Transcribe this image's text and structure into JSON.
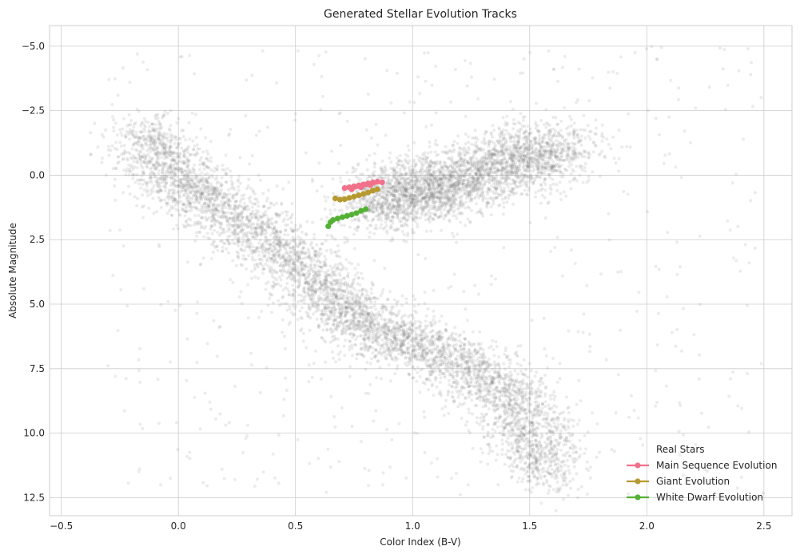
{
  "chart_data": {
    "type": "scatter",
    "title": "Generated Stellar Evolution Tracks",
    "xlabel": "Color Index (B-V)",
    "ylabel": "Absolute Magnitude",
    "xlim": [
      -0.55,
      2.62
    ],
    "ylim": [
      13.2,
      -5.8
    ],
    "y_inverted": true,
    "grid": true,
    "legend_position": "bottom-right",
    "x_ticks": [
      -0.5,
      0.0,
      0.5,
      1.0,
      1.5,
      2.0,
      2.5
    ],
    "x_tick_labels": [
      "−0.5",
      "0.0",
      "0.5",
      "1.0",
      "1.5",
      "2.0",
      "2.5"
    ],
    "y_ticks": [
      -5.0,
      -2.5,
      0.0,
      2.5,
      5.0,
      7.5,
      10.0,
      12.5
    ],
    "y_tick_labels": [
      "−5.0",
      "−2.5",
      "0.0",
      "2.5",
      "5.0",
      "7.5",
      "10.0",
      "12.5"
    ],
    "background_series": {
      "name": "Real Stars",
      "color": "#808080",
      "alpha": 0.15,
      "regions": [
        {
          "label": "main sequence",
          "path": [
            [
              -0.15,
              -1.8
            ],
            [
              -0.05,
              -0.2
            ],
            [
              0.1,
              0.8
            ],
            [
              0.3,
              2.0
            ],
            [
              0.5,
              3.4
            ],
            [
              0.65,
              4.8
            ],
            [
              0.8,
              5.8
            ],
            [
              1.0,
              6.5
            ],
            [
              1.2,
              7.3
            ],
            [
              1.4,
              8.4
            ],
            [
              1.5,
              10.0
            ],
            [
              1.6,
              11.8
            ]
          ]
        },
        {
          "label": "giant branch",
          "path": [
            [
              0.85,
              1.2
            ],
            [
              0.95,
              0.7
            ],
            [
              1.05,
              0.6
            ],
            [
              1.2,
              0.2
            ],
            [
              1.35,
              -0.3
            ],
            [
              1.5,
              -0.7
            ],
            [
              1.65,
              -1.1
            ]
          ]
        }
      ]
    },
    "series": [
      {
        "name": "Main Sequence Evolution",
        "color": "#f2718a",
        "points": [
          [
            0.71,
            0.5
          ],
          [
            0.73,
            0.47
          ],
          [
            0.75,
            0.43
          ],
          [
            0.77,
            0.4
          ],
          [
            0.79,
            0.36
          ],
          [
            0.81,
            0.32
          ],
          [
            0.83,
            0.28
          ],
          [
            0.85,
            0.25
          ],
          [
            0.87,
            0.28
          ],
          [
            0.74,
            0.55
          ],
          [
            0.78,
            0.47
          ],
          [
            0.82,
            0.38
          ]
        ]
      },
      {
        "name": "Giant Evolution",
        "color": "#b69a30",
        "points": [
          [
            0.67,
            0.9
          ],
          [
            0.69,
            0.95
          ],
          [
            0.71,
            0.93
          ],
          [
            0.73,
            0.88
          ],
          [
            0.75,
            0.83
          ],
          [
            0.77,
            0.78
          ],
          [
            0.79,
            0.73
          ],
          [
            0.81,
            0.67
          ],
          [
            0.83,
            0.6
          ],
          [
            0.85,
            0.55
          ]
        ]
      },
      {
        "name": "White Dwarf Evolution",
        "color": "#55b135",
        "points": [
          [
            0.64,
            1.98
          ],
          [
            0.65,
            1.82
          ],
          [
            0.66,
            1.74
          ],
          [
            0.68,
            1.68
          ],
          [
            0.7,
            1.63
          ],
          [
            0.72,
            1.58
          ],
          [
            0.74,
            1.53
          ],
          [
            0.76,
            1.47
          ],
          [
            0.78,
            1.38
          ],
          [
            0.8,
            1.32
          ]
        ]
      }
    ]
  }
}
